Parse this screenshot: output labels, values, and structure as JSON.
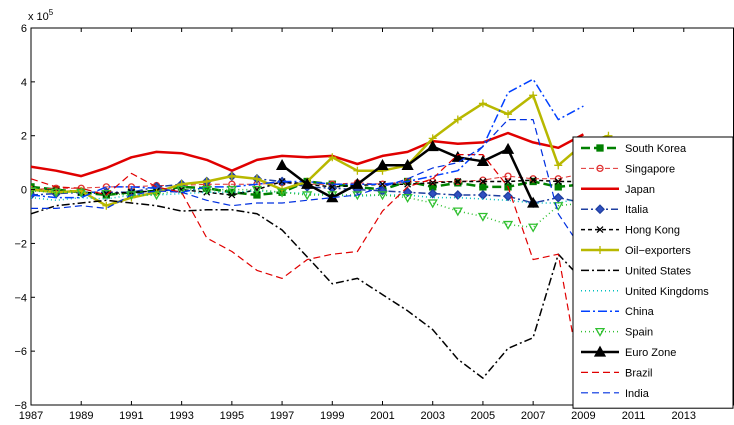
{
  "chart_data": {
    "type": "line",
    "title": "",
    "xlabel": "",
    "ylabel": "",
    "exponent_label": "x 10",
    "exponent_power": "5",
    "xlim": [
      1987,
      2015
    ],
    "ylim": [
      -8,
      6
    ],
    "x_ticks": [
      1987,
      1989,
      1991,
      1993,
      1995,
      1997,
      1999,
      2001,
      2003,
      2005,
      2007,
      2009,
      2011,
      2013
    ],
    "x_tick_labels": [
      "1987",
      "1989",
      "1991",
      "1993",
      "1995",
      "1997",
      "1999",
      "2001",
      "2003",
      "2005",
      "2007",
      "2009",
      "2011",
      "2013"
    ],
    "y_ticks": [
      -8,
      -6,
      -4,
      -2,
      0,
      2,
      4,
      6
    ],
    "y_tick_labels": [
      "−8",
      "−6",
      "−4",
      "−2",
      "0",
      "2",
      "4",
      "6"
    ],
    "grid": false,
    "legend_position": "right",
    "series": [
      {
        "name": "South Korea",
        "color": "#008000",
        "dash": "9,4",
        "width": 2.5,
        "marker": "square",
        "markerFill": "#008000",
        "x": [
          1987,
          1988,
          1989,
          1990,
          1991,
          1992,
          1993,
          1994,
          1995,
          1996,
          1997,
          1998,
          1999,
          2000,
          2001,
          2002,
          2003,
          2004,
          2005,
          2006,
          2007,
          2008,
          2009,
          2010
        ],
        "y": [
          0.1,
          0.0,
          -0.1,
          -0.2,
          -0.1,
          -0.05,
          0.1,
          0.05,
          -0.1,
          -0.2,
          -0.1,
          0.3,
          0.2,
          0.1,
          0.0,
          0.3,
          0.1,
          0.25,
          0.1,
          0.1,
          0.3,
          0.1,
          0.2,
          0.1
        ]
      },
      {
        "name": "Singapore",
        "color": "#e03030",
        "dash": "5,3",
        "width": 1,
        "marker": "circle",
        "markerFill": "none",
        "x": [
          1987,
          1988,
          1989,
          1990,
          1991,
          1992,
          1993,
          1994,
          1995,
          1996,
          1997,
          1998,
          1999,
          2000,
          2001,
          2002,
          2003,
          2004,
          2005,
          2006,
          2007,
          2008,
          2009,
          2010
        ],
        "y": [
          0.0,
          0.05,
          0.05,
          0.1,
          0.1,
          0.15,
          0.15,
          0.2,
          0.2,
          0.2,
          0.25,
          0.2,
          0.2,
          0.25,
          0.2,
          0.3,
          0.3,
          0.3,
          0.35,
          0.5,
          0.4,
          0.4,
          0.6,
          0.5
        ]
      },
      {
        "name": "Japan",
        "color": "#e00000",
        "dash": "",
        "width": 2.5,
        "marker": "none",
        "markerFill": "none",
        "x": [
          1987,
          1988,
          1989,
          1990,
          1991,
          1992,
          1993,
          1994,
          1995,
          1996,
          1997,
          1998,
          1999,
          2000,
          2001,
          2002,
          2003,
          2004,
          2005,
          2006,
          2007,
          2008,
          2009
        ],
        "y": [
          0.85,
          0.7,
          0.5,
          0.8,
          1.2,
          1.4,
          1.35,
          1.1,
          0.7,
          1.1,
          1.25,
          1.2,
          1.25,
          0.95,
          1.25,
          1.4,
          1.8,
          1.7,
          1.75,
          2.1,
          1.75,
          1.55,
          2.05
        ]
      },
      {
        "name": "Italia",
        "color": "#1f3fa0",
        "dash": "7,3,2,3",
        "width": 1.5,
        "marker": "diamond",
        "markerFill": "#3050c0",
        "x": [
          1987,
          1988,
          1989,
          1990,
          1991,
          1992,
          1993,
          1994,
          1995,
          1996,
          1997,
          1998,
          1999,
          2000,
          2001,
          2002,
          2003,
          2004,
          2005,
          2006,
          2007,
          2008,
          2009,
          2010
        ],
        "y": [
          -0.2,
          -0.15,
          -0.1,
          -0.1,
          -0.1,
          0.1,
          0.2,
          0.3,
          0.5,
          0.4,
          0.3,
          0.1,
          0.05,
          0.0,
          -0.05,
          -0.1,
          -0.15,
          -0.2,
          -0.2,
          -0.25,
          -0.5,
          -0.3,
          -0.5,
          -0.4
        ]
      },
      {
        "name": "Hong Kong",
        "color": "#000000",
        "dash": "4,3",
        "width": 1.5,
        "marker": "x",
        "markerFill": "none",
        "x": [
          1987,
          1988,
          1989,
          1990,
          1991,
          1992,
          1993,
          1994,
          1995,
          1996,
          1997,
          1998,
          1999,
          2000,
          2001,
          2002,
          2003,
          2004,
          2005,
          2006,
          2007,
          2008,
          2009,
          2010
        ],
        "y": [
          0.0,
          -0.05,
          -0.1,
          -0.15,
          -0.1,
          -0.05,
          0.0,
          -0.1,
          -0.2,
          0.0,
          0.3,
          0.2,
          0.1,
          0.15,
          0.2,
          0.2,
          0.25,
          0.3,
          0.3,
          0.3,
          0.35,
          0.3,
          0.3,
          0.3
        ]
      },
      {
        "name": "Oil−exporters",
        "color": "#b8b800",
        "dash": "",
        "width": 2.5,
        "marker": "plus",
        "markerFill": "none",
        "x": [
          1987,
          1988,
          1989,
          1990,
          1991,
          1992,
          1993,
          1994,
          1995,
          1996,
          1997,
          1998,
          1999,
          2000,
          2001,
          2002,
          2003,
          2004,
          2005,
          2006,
          2007,
          2008,
          2009,
          2010
        ],
        "y": [
          0.0,
          -0.1,
          -0.05,
          -0.6,
          -0.3,
          -0.1,
          0.2,
          0.3,
          0.5,
          0.4,
          0.0,
          0.3,
          1.2,
          0.7,
          0.7,
          0.9,
          1.9,
          2.6,
          3.2,
          2.8,
          3.5,
          0.9,
          1.7,
          2.0
        ]
      },
      {
        "name": "United States",
        "color": "#000000",
        "dash": "8,3,2,3",
        "width": 1.5,
        "marker": "none",
        "markerFill": "none",
        "x": [
          1987,
          1988,
          1989,
          1990,
          1991,
          1992,
          1993,
          1994,
          1995,
          1996,
          1997,
          1998,
          1999,
          2000,
          2001,
          2002,
          2003,
          2004,
          2005,
          2006,
          2007,
          2008,
          2009
        ],
        "y": [
          -0.9,
          -0.6,
          -0.5,
          -0.4,
          -0.5,
          -0.6,
          -0.8,
          -0.75,
          -0.75,
          -0.9,
          -1.5,
          -2.5,
          -3.5,
          -3.3,
          -3.9,
          -4.5,
          -5.2,
          -6.3,
          -7.0,
          -5.9,
          -5.5,
          -2.4,
          -3.4
        ]
      },
      {
        "name": "United Kingdoms",
        "color": "#00c0c0",
        "dash": "1,3",
        "width": 1.5,
        "marker": "none",
        "markerFill": "none",
        "x": [
          1987,
          1988,
          1989,
          1990,
          1991,
          1992,
          1993,
          1994,
          1995,
          1996,
          1997,
          1998,
          1999,
          2000,
          2001,
          2002,
          2003,
          2004,
          2005,
          2006,
          2007,
          2008,
          2009,
          2010
        ],
        "y": [
          -0.3,
          -0.4,
          -0.3,
          -0.35,
          -0.2,
          -0.2,
          -0.15,
          -0.1,
          -0.1,
          -0.05,
          -0.1,
          -0.15,
          -0.2,
          -0.25,
          -0.2,
          -0.2,
          -0.3,
          -0.3,
          -0.35,
          -0.4,
          -0.5,
          -0.5,
          -0.3,
          -0.3
        ]
      },
      {
        "name": "China",
        "color": "#0040ff",
        "dash": "9,3,2,3",
        "width": 1.5,
        "marker": "none",
        "markerFill": "none",
        "x": [
          1987,
          1988,
          1989,
          1990,
          1991,
          1992,
          1993,
          1994,
          1995,
          1996,
          1997,
          1998,
          1999,
          2000,
          2001,
          2002,
          2003,
          2004,
          2005,
          2006,
          2007,
          2008,
          2009
        ],
        "y": [
          -0.2,
          -0.3,
          -0.3,
          0.1,
          0.1,
          0.05,
          -0.1,
          0.1,
          0.1,
          0.2,
          0.3,
          0.3,
          0.2,
          0.2,
          0.2,
          0.3,
          0.5,
          0.7,
          1.6,
          3.6,
          4.1,
          2.6,
          3.1
        ]
      },
      {
        "name": "Spain",
        "color": "#30c030",
        "dash": "1,3",
        "width": 1.5,
        "marker": "tri-down",
        "markerFill": "none",
        "x": [
          1987,
          1988,
          1989,
          1990,
          1991,
          1992,
          1993,
          1994,
          1995,
          1996,
          1997,
          1998,
          1999,
          2000,
          2001,
          2002,
          2003,
          2004,
          2005,
          2006,
          2007,
          2008,
          2009,
          2010
        ],
        "y": [
          -0.05,
          -0.1,
          -0.1,
          -0.15,
          -0.2,
          -0.2,
          0.0,
          0.0,
          0.0,
          0.0,
          -0.1,
          -0.2,
          -0.2,
          -0.2,
          -0.2,
          -0.3,
          -0.5,
          -0.8,
          -1.0,
          -1.3,
          -1.4,
          -0.6,
          -0.5,
          -0.4
        ]
      },
      {
        "name": "Euro Zone",
        "color": "#000000",
        "dash": "",
        "width": 2.5,
        "marker": "triangle",
        "markerFill": "#000000",
        "x": [
          1997,
          1998,
          1999,
          2000,
          2001,
          2002,
          2003,
          2004,
          2005,
          2006,
          2007
        ],
        "y": [
          0.9,
          0.2,
          -0.3,
          0.2,
          0.9,
          0.9,
          1.6,
          1.2,
          1.05,
          1.5,
          -0.5
        ]
      },
      {
        "name": "Brazil",
        "color": "#e00000",
        "dash": "7,4",
        "width": 1.2,
        "marker": "none",
        "markerFill": "none",
        "x": [
          1987,
          1988,
          1989,
          1990,
          1991,
          1992,
          1993,
          1994,
          1995,
          1996,
          1997,
          1998,
          1999,
          2000,
          2001,
          2002,
          2003,
          2004,
          2005,
          2006,
          2007,
          2008,
          2009,
          2010
        ],
        "y": [
          0.4,
          0.1,
          0.05,
          -0.2,
          0.6,
          0.1,
          -0.1,
          -1.8,
          -2.3,
          -3.0,
          -3.3,
          -2.6,
          -2.4,
          -2.3,
          -0.8,
          0.1,
          0.4,
          1.3,
          1.3,
          0.1,
          -2.6,
          -2.4,
          -7.6,
          -7.7
        ]
      },
      {
        "name": "India",
        "color": "#0030e0",
        "dash": "7,4",
        "width": 1.2,
        "marker": "none",
        "markerFill": "none",
        "x": [
          1987,
          1988,
          1989,
          1990,
          1991,
          1992,
          1993,
          1994,
          1995,
          1996,
          1997,
          1998,
          1999,
          2000,
          2001,
          2002,
          2003,
          2004,
          2005,
          2006,
          2007,
          2008,
          2009,
          2010
        ],
        "y": [
          -0.7,
          -0.7,
          -0.6,
          -0.7,
          -0.2,
          -0.05,
          -0.1,
          -0.4,
          -0.6,
          -0.5,
          -0.5,
          -0.4,
          -0.3,
          -0.2,
          0.1,
          0.4,
          0.8,
          1.0,
          1.6,
          2.6,
          2.6,
          -0.9,
          -2.3,
          -6.3
        ]
      }
    ]
  }
}
